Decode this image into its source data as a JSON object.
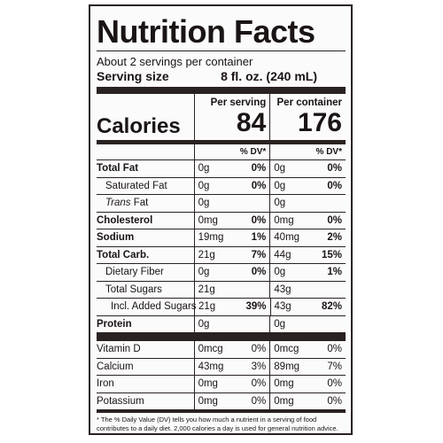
{
  "label": {
    "title": "Nutrition Facts",
    "servings_per_container": "About 2 servings per container",
    "serving_size_label": "Serving size",
    "serving_size_value": "8 fl. oz. (240 mL)",
    "calories_label": "Calories",
    "col_per_serving": "Per serving",
    "col_per_container": "Per container",
    "calories_per_serving": "84",
    "calories_per_container": "176",
    "dv_header": "% DV*",
    "nutrients": [
      {
        "name": "Total Fat",
        "s_amt": "0g",
        "s_dv": "0%",
        "c_amt": "0g",
        "c_dv": "0%"
      },
      {
        "name": "Saturated Fat",
        "s_amt": "0g",
        "s_dv": "0%",
        "c_amt": "0g",
        "c_dv": "0%"
      },
      {
        "name_italic": "Trans",
        "name": " Fat",
        "s_amt": "0g",
        "s_dv": "",
        "c_amt": "0g",
        "c_dv": ""
      },
      {
        "name": "Cholesterol",
        "s_amt": "0mg",
        "s_dv": "0%",
        "c_amt": "0mg",
        "c_dv": "0%"
      },
      {
        "name": "Sodium",
        "s_amt": "19mg",
        "s_dv": "1%",
        "c_amt": "40mg",
        "c_dv": "2%"
      },
      {
        "name": "Total Carb.",
        "s_amt": "21g",
        "s_dv": "7%",
        "c_amt": "44g",
        "c_dv": "15%"
      },
      {
        "name": "Dietary Fiber",
        "s_amt": "0g",
        "s_dv": "0%",
        "c_amt": "0g",
        "c_dv": "1%"
      },
      {
        "name": "Total Sugars",
        "s_amt": "21g",
        "s_dv": "",
        "c_amt": "43g",
        "c_dv": ""
      },
      {
        "name": "Incl. Added Sugars",
        "s_amt": "21g",
        "s_dv": "39%",
        "c_amt": "43g",
        "c_dv": "82%"
      },
      {
        "name": "Protein",
        "s_amt": "0g",
        "s_dv": "",
        "c_amt": "0g",
        "c_dv": ""
      }
    ],
    "vitamins": [
      {
        "name": "Vitamin D",
        "s_amt": "0mcg",
        "s_dv": "0%",
        "c_amt": "0mcg",
        "c_dv": "0%"
      },
      {
        "name": "Calcium",
        "s_amt": "43mg",
        "s_dv": "3%",
        "c_amt": "89mg",
        "c_dv": "7%"
      },
      {
        "name": "Iron",
        "s_amt": "0mg",
        "s_dv": "0%",
        "c_amt": "0mg",
        "c_dv": "0%"
      },
      {
        "name": "Potassium",
        "s_amt": "0mg",
        "s_dv": "0%",
        "c_amt": "0mg",
        "c_dv": "0%"
      }
    ],
    "footnote": "* The % Daily Value (DV) tells you how much a nutrient in a serving of food contributes to a daily diet. 2,000 calories a day is used for general nutrition advice."
  }
}
